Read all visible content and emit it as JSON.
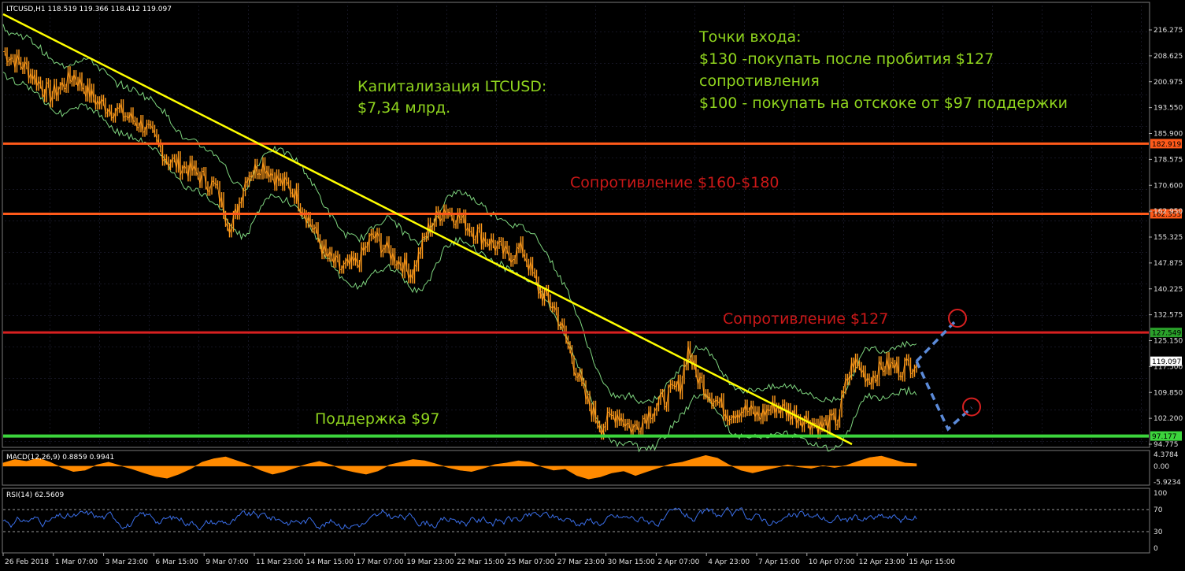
{
  "symbol_header": "LTCUSD,H1  118.519 119.366 118.412 119.097",
  "macd_header": "MACD(12,26,9) 0.8859 0.9941",
  "rsi_header": "RSI(14) 62.5609",
  "annotations": {
    "cap_line1": "Капитализация LTCUSD:",
    "cap_line2": "$7,34 млрд.",
    "entry_line1": "Точки входа:",
    "entry_line2": "$130 -покупать после пробития $127",
    "entry_line3": "сопротивления",
    "entry_line4": "$100 - покупать на отскоке от $97 поддержки",
    "resistance_zone": "Сопротивление $160-$180",
    "resistance_127": "Сопротивление $127",
    "support_97": "Поддержка $97"
  },
  "colors": {
    "background": "#000000",
    "candles": "#ff9a1a",
    "bands": "#7fd67f",
    "trendline": "#ffff00",
    "resistance_zone_lines": "#ff5a1a",
    "resistance_127_line": "#d82020",
    "support_line": "#3cd43c",
    "annotation_green": "#8fd41e",
    "annotation_red": "#cc1818",
    "projection": "#5b8ad8",
    "macd": "#ff8a00",
    "rsi": "#3a6ee8"
  },
  "chart_data": [
    {
      "type": "line",
      "panel": "price",
      "ylim": [
        94.775,
        216.275
      ],
      "y_ticks": [
        "216.275",
        "208.625",
        "200.975",
        "193.550",
        "185.900",
        "178.575",
        "170.600",
        "162.950",
        "155.325",
        "147.875",
        "140.225",
        "132.575",
        "125.150",
        "117.500",
        "109.850",
        "102.200",
        "94.775"
      ],
      "x_ticks": [
        "26 Feb 2018",
        "1 Mar 07:00",
        "3 Mar 23:00",
        "6 Mar 15:00",
        "9 Mar 07:00",
        "11 Mar 23:00",
        "14 Mar 15:00",
        "17 Mar 07:00",
        "19 Mar 23:00",
        "22 Mar 15:00",
        "25 Mar 07:00",
        "27 Mar 23:00",
        "30 Mar 15:00",
        "2 Apr 07:00",
        "4 Apr 23:00",
        "7 Apr 15:00",
        "10 Apr 07:00",
        "12 Apr 23:00",
        "15 Apr 15:00"
      ],
      "price_path": [
        [
          0,
          210
        ],
        [
          3,
          205
        ],
        [
          6,
          197
        ],
        [
          9,
          203
        ],
        [
          12,
          195
        ],
        [
          15,
          192
        ],
        [
          18,
          188
        ],
        [
          21,
          178
        ],
        [
          24,
          175
        ],
        [
          27,
          170
        ],
        [
          29,
          158
        ],
        [
          31,
          174
        ],
        [
          33,
          177
        ],
        [
          35,
          172
        ],
        [
          37,
          169
        ],
        [
          39,
          160
        ],
        [
          41,
          150
        ],
        [
          43,
          146
        ],
        [
          45,
          148
        ],
        [
          47,
          156
        ],
        [
          49,
          151
        ],
        [
          52,
          145
        ],
        [
          54,
          158
        ],
        [
          56,
          164
        ],
        [
          58,
          161
        ],
        [
          60,
          157
        ],
        [
          62,
          154
        ],
        [
          64,
          150
        ],
        [
          66,
          152
        ],
        [
          68,
          140
        ],
        [
          70,
          135
        ],
        [
          72,
          122
        ],
        [
          74,
          108
        ],
        [
          76,
          100
        ],
        [
          78,
          104
        ],
        [
          80,
          99
        ],
        [
          82,
          104
        ],
        [
          84,
          108
        ],
        [
          86,
          112
        ],
        [
          87,
          123
        ],
        [
          88,
          115
        ],
        [
          90,
          109
        ],
        [
          92,
          104
        ],
        [
          94,
          105
        ],
        [
          96,
          103
        ],
        [
          98,
          106
        ],
        [
          100,
          104
        ],
        [
          102,
          102
        ],
        [
          104,
          100
        ],
        [
          106,
          102
        ],
        [
          107,
          112
        ],
        [
          108,
          119
        ],
        [
          110,
          114
        ],
        [
          112,
          118
        ],
        [
          114,
          117
        ],
        [
          116,
          119.097
        ]
      ],
      "price_x_range": [
        0,
        116
      ],
      "horizontal_levels": [
        {
          "label": "182.919",
          "value": 182.919
        },
        {
          "label": "162.353",
          "value": 162.353
        },
        {
          "label": "127.549",
          "value": 127.549
        },
        {
          "label": "119.097",
          "value": 119.097
        },
        {
          "label": "97.177",
          "value": 97.177
        }
      ],
      "trendline": [
        [
          0,
          220.9
        ],
        [
          107.8,
          94.775
        ]
      ],
      "projection_up": [
        [
          116,
          119.1
        ],
        [
          121.2,
          131.5
        ]
      ],
      "projection_down": [
        [
          116,
          119.1
        ],
        [
          120,
          99.2
        ],
        [
          123,
          105.5
        ]
      ]
    },
    {
      "type": "area",
      "panel": "macd",
      "name": "MACD(12,26,9)",
      "ylim": [
        -5.9234,
        4.3784
      ],
      "y_ticks": [
        "4.3784",
        "0.00",
        "-5.9234"
      ],
      "values": [
        1.2,
        2.5,
        1.8,
        3.0,
        1.5,
        -0.5,
        -2.0,
        -1.5,
        0.5,
        1.5,
        0.2,
        -1.0,
        -2.5,
        -3.8,
        -4.5,
        -3.0,
        -1.0,
        1.5,
        2.8,
        3.5,
        2.0,
        0.5,
        -1.5,
        -3.0,
        -2.0,
        -0.5,
        0.8,
        1.8,
        0.5,
        -1.2,
        -2.2,
        -3.0,
        -1.8,
        0.5,
        1.5,
        2.5,
        2.0,
        0.8,
        -0.5,
        -1.5,
        -2.0,
        -0.8,
        0.6,
        1.2,
        2.0,
        1.5,
        -0.2,
        -1.5,
        -1.0,
        -3.5,
        -4.8,
        -4.0,
        -2.5,
        -1.8,
        -3.5,
        -2.0,
        -0.6,
        0.8,
        1.5,
        2.8,
        4.0,
        3.0,
        0.5,
        -1.5,
        -2.5,
        -1.5,
        -0.5,
        0.5,
        -0.3,
        -0.8,
        0.2,
        -0.5,
        0.3,
        1.8,
        3.2,
        3.8,
        2.5,
        1.2,
        0.9
      ]
    },
    {
      "type": "line",
      "panel": "rsi",
      "name": "RSI(14)",
      "ylim": [
        0,
        100
      ],
      "y_ticks": [
        "100",
        "70",
        "30",
        "0"
      ],
      "levels": [
        70,
        30
      ]
    }
  ]
}
